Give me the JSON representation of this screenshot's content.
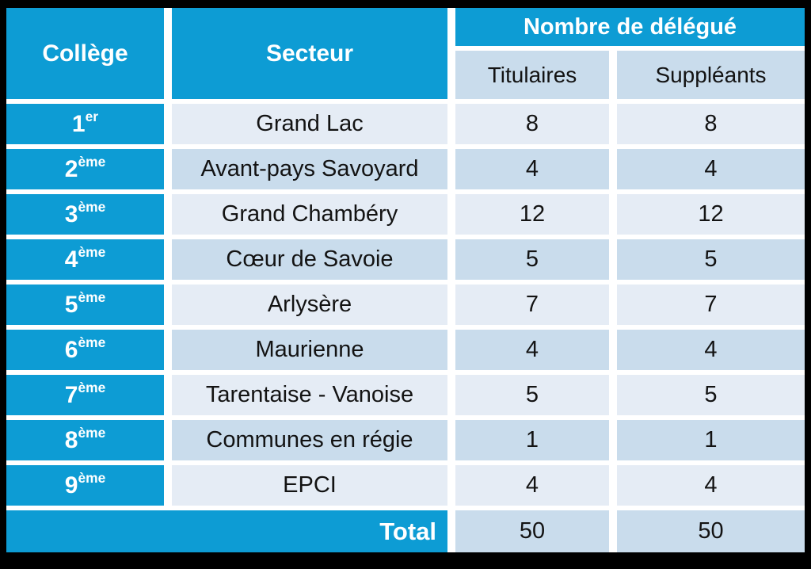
{
  "table": {
    "header": {
      "college": "Collège",
      "secteur": "Secteur",
      "nombre": "Nombre de délégué",
      "titulaires": "Titulaires",
      "suppleants": "Suppléants"
    },
    "rows": [
      {
        "college_num": "1",
        "college_sup": "er",
        "secteur": "Grand Lac",
        "titulaires": "8",
        "suppleants": "8"
      },
      {
        "college_num": "2",
        "college_sup": "ème",
        "secteur": "Avant-pays Savoyard",
        "titulaires": "4",
        "suppleants": "4"
      },
      {
        "college_num": "3",
        "college_sup": "ème",
        "secteur": "Grand Chambéry",
        "titulaires": "12",
        "suppleants": "12"
      },
      {
        "college_num": "4",
        "college_sup": "ème",
        "secteur": "Cœur de Savoie",
        "titulaires": "5",
        "suppleants": "5"
      },
      {
        "college_num": "5",
        "college_sup": "ème",
        "secteur": "Arlysère",
        "titulaires": "7",
        "suppleants": "7"
      },
      {
        "college_num": "6",
        "college_sup": "ème",
        "secteur": "Maurienne",
        "titulaires": "4",
        "suppleants": "4"
      },
      {
        "college_num": "7",
        "college_sup": "ème",
        "secteur": "Tarentaise - Vanoise",
        "titulaires": "5",
        "suppleants": "5"
      },
      {
        "college_num": "8",
        "college_sup": "ème",
        "secteur": "Communes en régie",
        "titulaires": "1",
        "suppleants": "1"
      },
      {
        "college_num": "9",
        "college_sup": "ème",
        "secteur": "EPCI",
        "titulaires": "4",
        "suppleants": "4"
      }
    ],
    "total": {
      "label": "Total",
      "titulaires": "50",
      "suppleants": "50"
    }
  },
  "chart_data": {
    "type": "table",
    "title": "Nombre de délégué",
    "columns": [
      "Collège",
      "Secteur",
      "Titulaires",
      "Suppléants"
    ],
    "column_group": {
      "label": "Nombre de délégué",
      "spans": [
        "Titulaires",
        "Suppléants"
      ]
    },
    "rows": [
      [
        "1er",
        "Grand Lac",
        8,
        8
      ],
      [
        "2ème",
        "Avant-pays Savoyard",
        4,
        4
      ],
      [
        "3ème",
        "Grand Chambéry",
        12,
        12
      ],
      [
        "4ème",
        "Cœur de Savoie",
        5,
        5
      ],
      [
        "5ème",
        "Arlysère",
        7,
        7
      ],
      [
        "6ème",
        "Maurienne",
        4,
        4
      ],
      [
        "7ème",
        "Tarentaise - Vanoise",
        5,
        5
      ],
      [
        "8ème",
        "Communes en régie",
        1,
        1
      ],
      [
        "9ème",
        "EPCI",
        4,
        4
      ]
    ],
    "total_row": [
      "Total",
      50,
      50
    ]
  },
  "colors": {
    "header_blue": "#0d9cd4",
    "row_light": "#e5ecf5",
    "row_dark": "#c9dcec",
    "grid_gap": "#ffffff",
    "page_background": "#000000",
    "text_dark": "#131313",
    "text_light": "#ffffff"
  }
}
